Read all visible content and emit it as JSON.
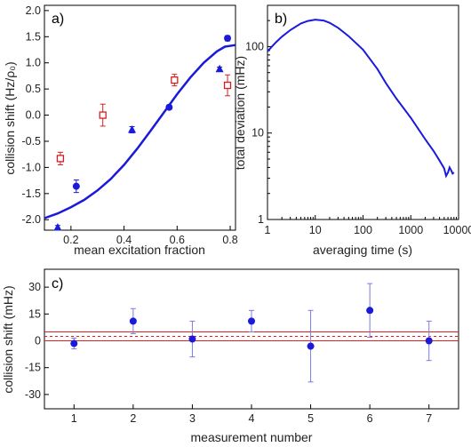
{
  "chart_data": [
    {
      "type": "scatter",
      "panel_label": "a)",
      "xlabel": "mean excitation fraction",
      "ylabel": "collision shift (Hz/ρ₀)",
      "xlim": [
        0.1,
        0.82
      ],
      "ylim": [
        -2.2,
        2.1
      ],
      "x_ticks": [
        {
          "v": 0.2,
          "label": "0.2"
        },
        {
          "v": 0.4,
          "label": "0.4"
        },
        {
          "v": 0.6,
          "label": "0.6"
        },
        {
          "v": 0.8,
          "label": "0.8"
        }
      ],
      "y_ticks": [
        {
          "v": -2.0,
          "label": "-2.0"
        },
        {
          "v": -1.5,
          "label": "-1.5"
        },
        {
          "v": -1.0,
          "label": "-1.0"
        },
        {
          "v": -0.5,
          "label": "-0.5"
        },
        {
          "v": 0.0,
          "label": "0.0"
        },
        {
          "v": 0.5,
          "label": "0.5"
        },
        {
          "v": 1.0,
          "label": "1.0"
        },
        {
          "v": 1.5,
          "label": "1.5"
        },
        {
          "v": 2.0,
          "label": "2.0"
        }
      ],
      "series": [
        {
          "marker": "circle",
          "color": "#1a1adb",
          "points": [
            {
              "x": 0.22,
              "y": -1.36,
              "err": 0.12
            },
            {
              "x": 0.57,
              "y": 0.15,
              "err": 0.04
            },
            {
              "x": 0.79,
              "y": 1.47,
              "err": 0.05
            }
          ]
        },
        {
          "marker": "triangle",
          "color": "#1a1adb",
          "points": [
            {
              "x": 0.15,
              "y": -2.15,
              "err": 0.04
            },
            {
              "x": 0.43,
              "y": -0.28,
              "err": 0.06
            },
            {
              "x": 0.76,
              "y": 0.88,
              "err": 0.04
            }
          ]
        },
        {
          "marker": "open-square",
          "color": "#d81f1f",
          "points": [
            {
              "x": 0.16,
              "y": -0.83,
              "err": 0.12
            },
            {
              "x": 0.32,
              "y": 0.0,
              "err": 0.21
            },
            {
              "x": 0.59,
              "y": 0.67,
              "err": 0.11
            },
            {
              "x": 0.79,
              "y": 0.57,
              "err": 0.2
            }
          ]
        },
        {
          "type": "line",
          "color": "#1a1adb",
          "x": [
            0.1,
            0.15,
            0.2,
            0.25,
            0.3,
            0.35,
            0.4,
            0.45,
            0.5,
            0.55,
            0.6,
            0.65,
            0.7,
            0.75,
            0.78,
            0.82
          ],
          "y": [
            -1.97,
            -1.88,
            -1.76,
            -1.62,
            -1.44,
            -1.22,
            -0.95,
            -0.64,
            -0.3,
            0.05,
            0.4,
            0.72,
            1.0,
            1.22,
            1.31,
            1.34
          ]
        }
      ]
    },
    {
      "type": "line",
      "panel_label": "b)",
      "xlabel": "averaging time (s)",
      "ylabel": "total deviation (mHz)",
      "xscale": "log",
      "yscale": "log",
      "xlim": [
        1,
        10000
      ],
      "ylim": [
        1,
        300
      ],
      "x_ticks": [
        {
          "v": 1,
          "label": "1"
        },
        {
          "v": 10,
          "label": "10"
        },
        {
          "v": 100,
          "label": "100"
        },
        {
          "v": 1000,
          "label": "1000"
        },
        {
          "v": 10000,
          "label": "10000"
        }
      ],
      "y_ticks": [
        {
          "v": 1,
          "label": "1"
        },
        {
          "v": 10,
          "label": "10"
        },
        {
          "v": 100,
          "label": "100"
        }
      ],
      "series": [
        {
          "color": "#1a1adb",
          "x": [
            1,
            1.5,
            2,
            3,
            5,
            7,
            10,
            15,
            20,
            30,
            50,
            100,
            200,
            300,
            500,
            1000,
            2000,
            3000,
            4000,
            5000,
            5500,
            6000,
            6500,
            7000,
            7500,
            8000
          ],
          "y": [
            88,
            112,
            130,
            155,
            185,
            198,
            205,
            200,
            188,
            165,
            132,
            92,
            55,
            38,
            25,
            15,
            8.5,
            6.2,
            4.8,
            3.9,
            3.2,
            3.5,
            4.0,
            3.7,
            3.4,
            3.5
          ]
        }
      ]
    },
    {
      "type": "scatter",
      "panel_label": "c)",
      "xlabel": "measurement number",
      "ylabel": "collision shift (mHz)",
      "xlim": [
        0.5,
        7.5
      ],
      "ylim": [
        -38,
        40
      ],
      "x_ticks": [
        {
          "v": 1,
          "label": "1"
        },
        {
          "v": 2,
          "label": "2"
        },
        {
          "v": 3,
          "label": "3"
        },
        {
          "v": 4,
          "label": "4"
        },
        {
          "v": 5,
          "label": "5"
        },
        {
          "v": 6,
          "label": "6"
        },
        {
          "v": 7,
          "label": "7"
        }
      ],
      "y_ticks": [
        {
          "v": -30,
          "label": "-30"
        },
        {
          "v": -15,
          "label": "-15"
        },
        {
          "v": 0,
          "label": "0"
        },
        {
          "v": 15,
          "label": "15"
        },
        {
          "v": 30,
          "label": "30"
        }
      ],
      "points": [
        {
          "x": 1,
          "y": -1.5,
          "err": 3
        },
        {
          "x": 2,
          "y": 11,
          "err": 7
        },
        {
          "x": 3,
          "y": 1,
          "err": 10
        },
        {
          "x": 4,
          "y": 11,
          "err": 6
        },
        {
          "x": 5,
          "y": -3,
          "err": 20
        },
        {
          "x": 6,
          "y": 17,
          "err": 15
        },
        {
          "x": 7,
          "y": 0,
          "err": 11
        }
      ],
      "mean": 2.5,
      "band": [
        0,
        5
      ],
      "point_color": "#1a1adb",
      "line_color": "#e02020"
    }
  ]
}
